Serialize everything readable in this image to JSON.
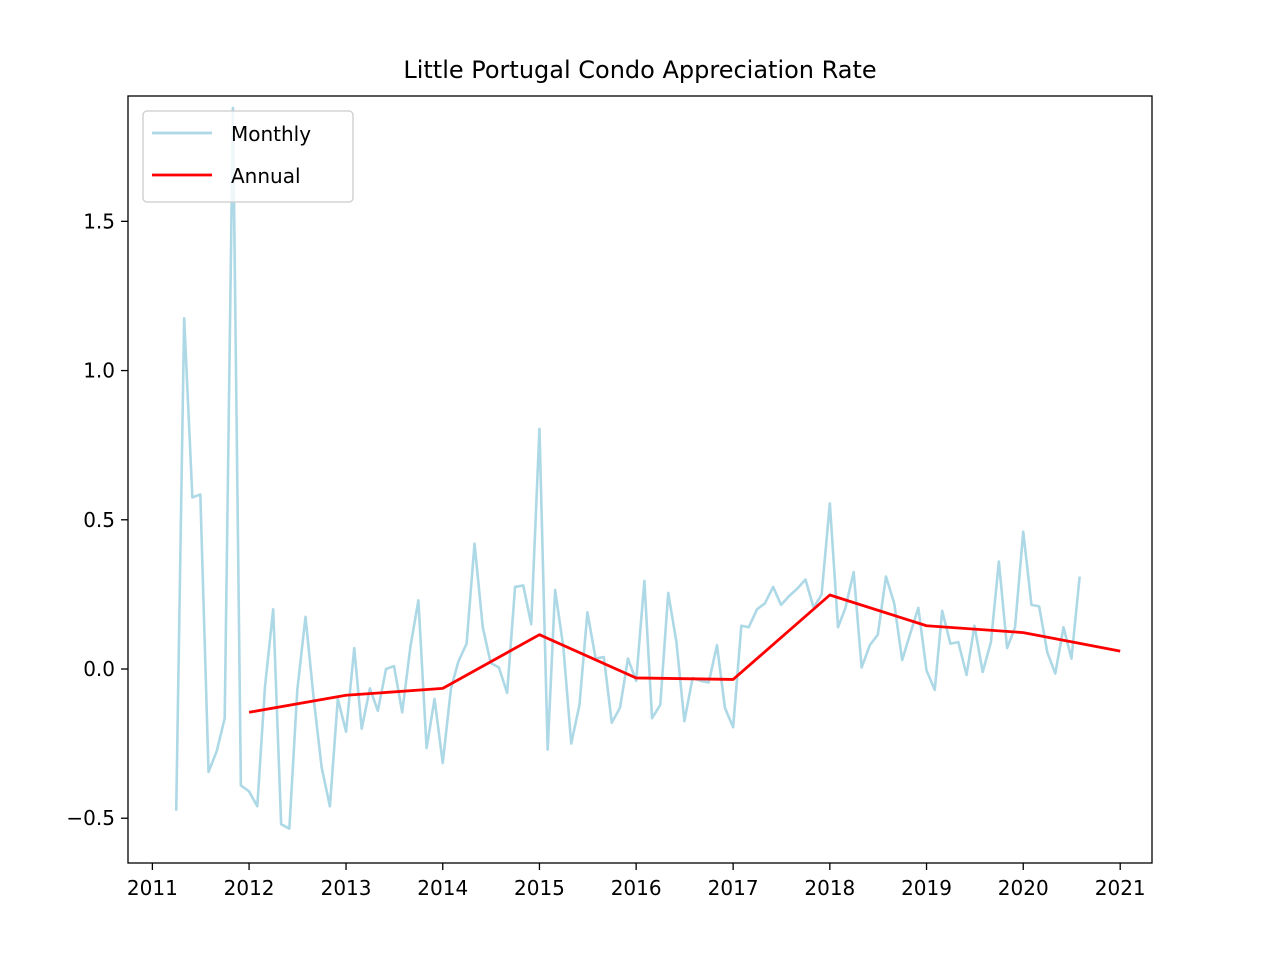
{
  "chart_data": {
    "type": "line",
    "title": "Little Portugal Condo Appreciation Rate",
    "xlabel": "",
    "ylabel": "",
    "xlim": [
      "2010-10-01",
      "2021-05-01"
    ],
    "ylim": [
      -0.65,
      1.92
    ],
    "x_ticks": [
      "2011",
      "2012",
      "2013",
      "2014",
      "2015",
      "2016",
      "2017",
      "2018",
      "2019",
      "2020",
      "2021"
    ],
    "y_ticks": [
      -0.5,
      0.0,
      0.5,
      1.0,
      1.5
    ],
    "y_tick_labels": [
      "−0.5",
      "0.0",
      "0.5",
      "1.0",
      "1.5"
    ],
    "grid": false,
    "legend_position": "upper-left",
    "series": [
      {
        "name": "Monthly",
        "color": "#add8e6",
        "points": [
          [
            "2011-04-01",
            -0.475
          ],
          [
            "2011-05-01",
            1.175
          ],
          [
            "2011-06-01",
            0.575
          ],
          [
            "2011-07-01",
            0.585
          ],
          [
            "2011-08-01",
            -0.345
          ],
          [
            "2011-09-01",
            -0.275
          ],
          [
            "2011-10-01",
            -0.165
          ],
          [
            "2011-11-01",
            1.88
          ],
          [
            "2011-12-01",
            -0.39
          ],
          [
            "2012-01-01",
            -0.41
          ],
          [
            "2012-02-01",
            -0.46
          ],
          [
            "2012-03-01",
            -0.06
          ],
          [
            "2012-04-01",
            0.2
          ],
          [
            "2012-05-01",
            -0.52
          ],
          [
            "2012-06-01",
            -0.535
          ],
          [
            "2012-07-01",
            -0.07
          ],
          [
            "2012-08-01",
            0.175
          ],
          [
            "2012-09-01",
            -0.1
          ],
          [
            "2012-10-01",
            -0.33
          ],
          [
            "2012-11-01",
            -0.46
          ],
          [
            "2012-12-01",
            -0.1
          ],
          [
            "2013-01-01",
            -0.21
          ],
          [
            "2013-02-01",
            0.07
          ],
          [
            "2013-03-01",
            -0.2
          ],
          [
            "2013-04-01",
            -0.065
          ],
          [
            "2013-05-01",
            -0.14
          ],
          [
            "2013-06-01",
            0.0
          ],
          [
            "2013-07-01",
            0.01
          ],
          [
            "2013-08-01",
            -0.145
          ],
          [
            "2013-09-01",
            0.075
          ],
          [
            "2013-10-01",
            0.23
          ],
          [
            "2013-11-01",
            -0.265
          ],
          [
            "2013-12-01",
            -0.1
          ],
          [
            "2014-01-01",
            -0.315
          ],
          [
            "2014-02-01",
            -0.065
          ],
          [
            "2014-03-01",
            0.025
          ],
          [
            "2014-04-01",
            0.085
          ],
          [
            "2014-05-01",
            0.42
          ],
          [
            "2014-06-01",
            0.14
          ],
          [
            "2014-07-01",
            0.02
          ],
          [
            "2014-08-01",
            0.005
          ],
          [
            "2014-09-01",
            -0.08
          ],
          [
            "2014-10-01",
            0.275
          ],
          [
            "2014-11-01",
            0.28
          ],
          [
            "2014-12-01",
            0.15
          ],
          [
            "2015-01-01",
            0.805
          ],
          [
            "2015-02-01",
            -0.27
          ],
          [
            "2015-03-01",
            0.265
          ],
          [
            "2015-04-01",
            0.075
          ],
          [
            "2015-05-01",
            -0.25
          ],
          [
            "2015-06-01",
            -0.12
          ],
          [
            "2015-07-01",
            0.19
          ],
          [
            "2015-08-01",
            0.035
          ],
          [
            "2015-09-01",
            0.04
          ],
          [
            "2015-10-01",
            -0.18
          ],
          [
            "2015-11-01",
            -0.13
          ],
          [
            "2015-12-01",
            0.035
          ],
          [
            "2016-01-01",
            -0.04
          ],
          [
            "2016-02-01",
            0.295
          ],
          [
            "2016-03-01",
            -0.165
          ],
          [
            "2016-04-01",
            -0.12
          ],
          [
            "2016-05-01",
            0.255
          ],
          [
            "2016-06-01",
            0.09
          ],
          [
            "2016-07-01",
            -0.175
          ],
          [
            "2016-08-01",
            -0.03
          ],
          [
            "2016-09-01",
            -0.04
          ],
          [
            "2016-10-01",
            -0.045
          ],
          [
            "2016-11-01",
            0.08
          ],
          [
            "2016-12-01",
            -0.13
          ],
          [
            "2017-01-01",
            -0.195
          ],
          [
            "2017-02-01",
            0.145
          ],
          [
            "2017-03-01",
            0.14
          ],
          [
            "2017-04-01",
            0.2
          ],
          [
            "2017-05-01",
            0.22
          ],
          [
            "2017-06-01",
            0.275
          ],
          [
            "2017-07-01",
            0.215
          ],
          [
            "2017-08-01",
            0.245
          ],
          [
            "2017-09-01",
            0.27
          ],
          [
            "2017-10-01",
            0.3
          ],
          [
            "2017-11-01",
            0.205
          ],
          [
            "2017-12-01",
            0.25
          ],
          [
            "2018-01-01",
            0.555
          ],
          [
            "2018-02-01",
            0.14
          ],
          [
            "2018-03-01",
            0.205
          ],
          [
            "2018-04-01",
            0.325
          ],
          [
            "2018-05-01",
            0.005
          ],
          [
            "2018-06-01",
            0.08
          ],
          [
            "2018-07-01",
            0.115
          ],
          [
            "2018-08-01",
            0.31
          ],
          [
            "2018-09-01",
            0.22
          ],
          [
            "2018-10-01",
            0.03
          ],
          [
            "2018-11-01",
            0.12
          ],
          [
            "2018-12-01",
            0.205
          ],
          [
            "2019-01-01",
            -0.005
          ],
          [
            "2019-02-01",
            -0.07
          ],
          [
            "2019-03-01",
            0.195
          ],
          [
            "2019-04-01",
            0.085
          ],
          [
            "2019-05-01",
            0.09
          ],
          [
            "2019-06-01",
            -0.02
          ],
          [
            "2019-07-01",
            0.145
          ],
          [
            "2019-08-01",
            -0.01
          ],
          [
            "2019-09-01",
            0.09
          ],
          [
            "2019-10-01",
            0.36
          ],
          [
            "2019-11-01",
            0.07
          ],
          [
            "2019-12-01",
            0.14
          ],
          [
            "2020-01-01",
            0.46
          ],
          [
            "2020-02-01",
            0.215
          ],
          [
            "2020-03-01",
            0.21
          ],
          [
            "2020-04-01",
            0.055
          ],
          [
            "2020-05-01",
            -0.015
          ],
          [
            "2020-06-01",
            0.14
          ],
          [
            "2020-07-01",
            0.035
          ],
          [
            "2020-08-01",
            0.31
          ]
        ]
      },
      {
        "name": "Annual",
        "color": "#ff0000",
        "points": [
          [
            "2012-01-01",
            -0.145
          ],
          [
            "2013-01-01",
            -0.088
          ],
          [
            "2014-01-01",
            -0.065
          ],
          [
            "2015-01-01",
            0.115
          ],
          [
            "2016-01-01",
            -0.03
          ],
          [
            "2017-01-01",
            -0.035
          ],
          [
            "2018-01-01",
            0.248
          ],
          [
            "2019-01-01",
            0.145
          ],
          [
            "2020-01-01",
            0.122
          ],
          [
            "2021-01-01",
            0.06
          ]
        ]
      }
    ]
  }
}
